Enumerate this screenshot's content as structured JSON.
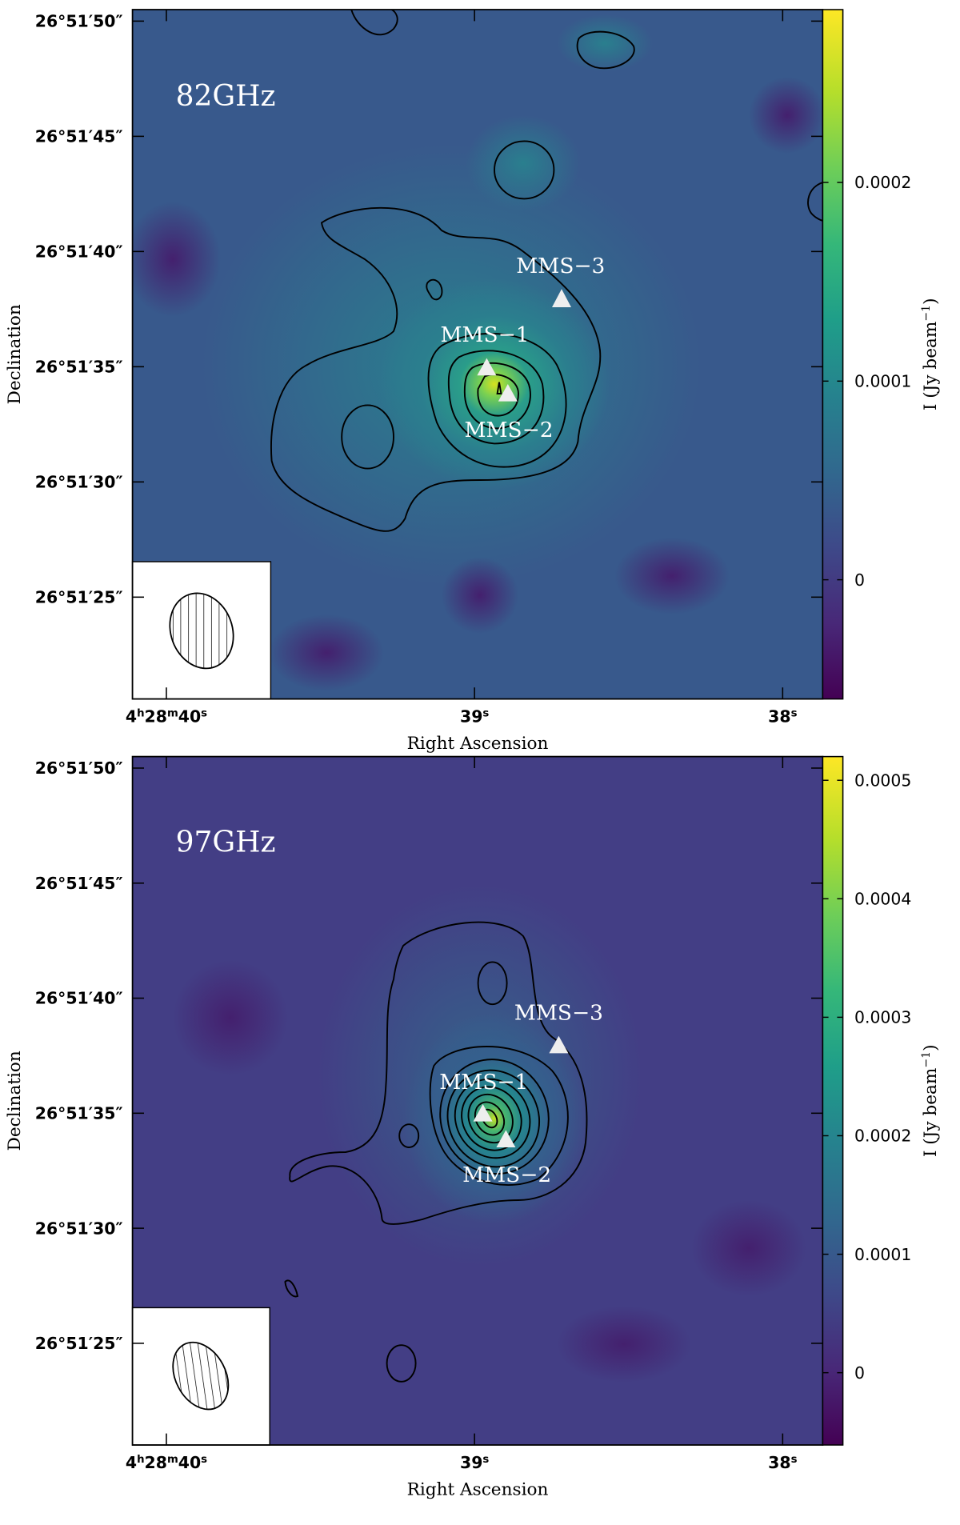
{
  "chart_data": [
    {
      "type": "image",
      "annotation": "82GHz",
      "sources": [
        "MMS−1",
        "MMS−2",
        "MMS−3"
      ],
      "xlabel": "Right Ascension",
      "ylabel": "Declination",
      "xlim": [
        40.11,
        37.87
      ],
      "xticks": [
        {
          "value": 40,
          "label": "4h28m40s"
        },
        {
          "value": 39,
          "label": "39s"
        },
        {
          "value": 38,
          "label": "38s"
        }
      ],
      "ylim": [
        20.58,
        50.5
      ],
      "yticks": [
        {
          "value": 50,
          "label": "26°51′50″"
        },
        {
          "value": 45,
          "label": "26°51′45″"
        },
        {
          "value": 40,
          "label": "26°51′40″"
        },
        {
          "value": 35,
          "label": "26°51′35″"
        },
        {
          "value": 30,
          "label": "26°51′30″"
        },
        {
          "value": 25,
          "label": "26°51′25″"
        }
      ],
      "colorbar": {
        "label": "I (Jy beam−1)",
        "lim": [
          -6e-05,
          0.000287
        ],
        "ticks": [
          0,
          0.0001,
          0.0002
        ]
      }
    },
    {
      "type": "image",
      "annotation": "97GHz",
      "sources": [
        "MMS−1",
        "MMS−2",
        "MMS−3"
      ],
      "xlabel": "Right Ascension",
      "ylabel": "Declination",
      "xlim": [
        40.11,
        37.87
      ],
      "xticks": [
        {
          "value": 40,
          "label": "4h28m40s"
        },
        {
          "value": 39,
          "label": "39s"
        },
        {
          "value": 38,
          "label": "38s"
        }
      ],
      "ylim": [
        20.58,
        50.5
      ],
      "yticks": [
        {
          "value": 50,
          "label": "26°51′50″"
        },
        {
          "value": 45,
          "label": "26°51′45″"
        },
        {
          "value": 40,
          "label": "26°51′40″"
        },
        {
          "value": 35,
          "label": "26°51′35″"
        },
        {
          "value": 30,
          "label": "26°51′30″"
        },
        {
          "value": 25,
          "label": "26°51′25″"
        }
      ],
      "colorbar": {
        "label": "I (Jy beam−1)",
        "lim": [
          -6.1e-05,
          0.00052
        ],
        "ticks": [
          0,
          0.0001,
          0.0002,
          0.0003,
          0.0004,
          0.0005
        ]
      }
    }
  ]
}
